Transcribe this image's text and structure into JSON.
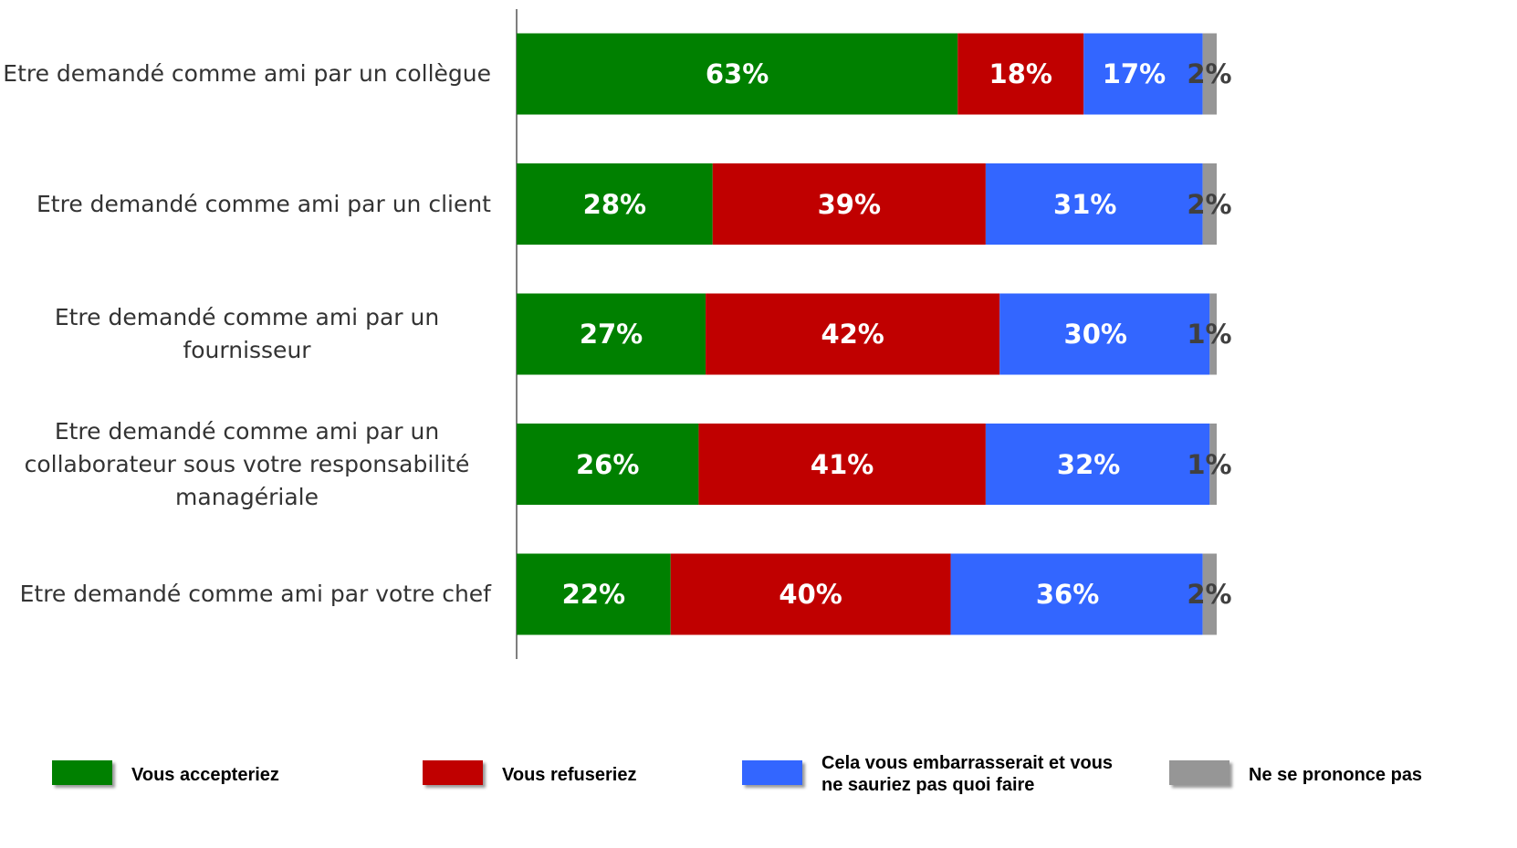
{
  "chart_data": {
    "type": "stacked_bar_horizontal",
    "categories": [
      "Etre demandé comme ami par un collègue",
      "Etre demandé comme ami par un client",
      "Etre demandé comme ami par un fournisseur",
      "Etre demandé comme ami par un collaborateur sous votre responsabilité managériale",
      "Etre demandé comme ami par votre chef"
    ],
    "xlim": [
      0,
      100
    ],
    "series": [
      {
        "name": "Vous accepteriez",
        "color": "#008000",
        "label_color": "#ffffff",
        "values": [
          63,
          28,
          27,
          26,
          22
        ],
        "value_labels": [
          "63%",
          "28%",
          "27%",
          "26%",
          "22%"
        ]
      },
      {
        "name": "Vous refuseriez",
        "color": "#c00000",
        "label_color": "#ffffff",
        "values": [
          18,
          39,
          42,
          41,
          40
        ],
        "value_labels": [
          "18%",
          "39%",
          "42%",
          "41%",
          "40%"
        ]
      },
      {
        "name": "Cela vous embarrasserait et vous ne sauriez pas quoi faire",
        "color": "#3366ff",
        "label_color": "#ffffff",
        "values": [
          17,
          31,
          30,
          32,
          36
        ],
        "value_labels": [
          "17%",
          "31%",
          "30%",
          "32%",
          "36%"
        ]
      },
      {
        "name": "Ne se prononce pas",
        "color": "#969696",
        "label_color": "#404040",
        "values": [
          2,
          2,
          1,
          1,
          2
        ],
        "value_labels": [
          "2%",
          "2%",
          "1%",
          "1%",
          "2%"
        ]
      }
    ]
  }
}
